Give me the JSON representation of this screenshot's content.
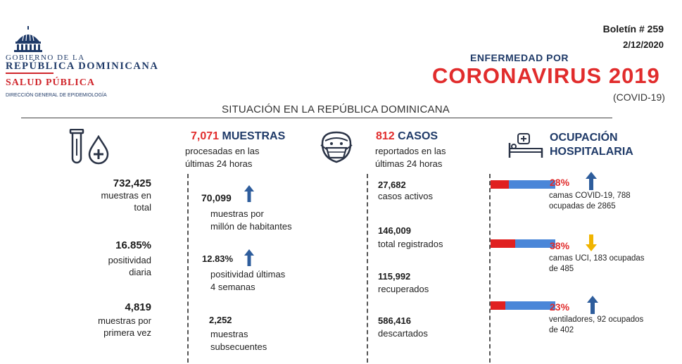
{
  "header": {
    "gov_line1": "GOBIERNO DE LA",
    "gov_line2": "REPÚBLICA DOMINICANA",
    "salud": "SALUD PÚBLICA",
    "direccion": "DIRECCIÓN GENERAL DE EPIDEMIOLOGÍA",
    "boletin": "Boletín # 259",
    "fecha": "2/12/2020",
    "enfermedad": "ENFERMEDAD POR",
    "titulo": "CORONAVIRUS 2019",
    "subtitulo": "(COVID-19)",
    "situacion": "SITUACIÓN EN LA REPÚBLICA DOMINICANA"
  },
  "icons": {
    "test_tube": "test-tube-icon",
    "blood_drop": "blood-drop-icon",
    "patient": "masked-patient-icon",
    "hospital_bed": "hospital-bed-icon",
    "arrow_up": "arrow-up-icon",
    "arrow_down": "arrow-down-icon"
  },
  "colors": {
    "navy": "#1f3a68",
    "red": "#e12c2c",
    "bar_blue": "#4a86d8",
    "arrow_up": "#2e5d9c",
    "arrow_down": "#f0b400"
  },
  "col1": {
    "items": [
      {
        "value": "732,425",
        "label1": "muestras en",
        "label2": "total"
      },
      {
        "value": "16.85%",
        "label1": "positividad",
        "label2": "diaria"
      },
      {
        "value": "4,819",
        "label1": "muestras por",
        "label2": "primera vez"
      }
    ]
  },
  "col2": {
    "heading_num": "7,071",
    "heading_text": "MUESTRAS",
    "sub1": "procesadas en las",
    "sub2": "últimas 24 horas",
    "items": [
      {
        "value": "70,099",
        "label1": "muestras por",
        "label2": "millón de habitantes",
        "trend": "up"
      },
      {
        "value": "12.83%",
        "label1": "positividad últimas",
        "label2": "4 semanas",
        "trend": "up"
      },
      {
        "value": "2,252",
        "label1": "muestras",
        "label2": "subsecuentes"
      }
    ]
  },
  "col3": {
    "heading_num": "812",
    "heading_text": "CASOS",
    "sub1": "reportados en las",
    "sub2": "últimas 24 horas",
    "items": [
      {
        "value": "27,682",
        "label": "casos activos"
      },
      {
        "value": "146,009",
        "label": "total registrados"
      },
      {
        "value": "115,992",
        "label": "recuperados"
      },
      {
        "value": "586,416",
        "label": "descartados"
      }
    ]
  },
  "col4": {
    "heading1": "OCUPACIÓN",
    "heading2": "HOSPITALARIA",
    "items": [
      {
        "pct": "28%",
        "fill": 0.28,
        "trend": "up",
        "line1": "camas COVID-19,  788",
        "line2": "ocupadas de 2865"
      },
      {
        "pct": "38%",
        "fill": 0.38,
        "trend": "down",
        "line1": "camas UCI,  183 ocupadas",
        "line2": "de 485"
      },
      {
        "pct": "23%",
        "fill": 0.23,
        "trend": "up",
        "line1": "ventiladores, 92 ocupados",
        "line2": "de 402"
      }
    ]
  }
}
